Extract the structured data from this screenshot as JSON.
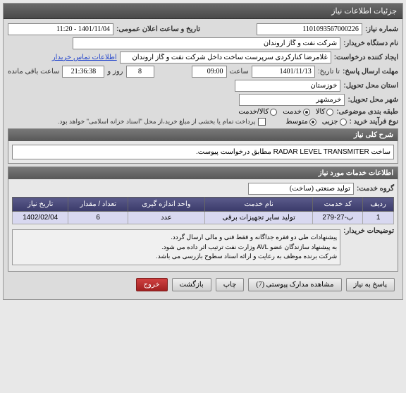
{
  "panel_title": "جزئیات اطلاعات نیاز",
  "labels": {
    "need_no": "شماره نیاز:",
    "announce_time": "تاریخ و ساعت اعلان عمومی:",
    "buyer": "نام دستگاه خریدار:",
    "requester": "ایجاد کننده درخواست:",
    "contact_link": "اطلاعات تماس خریدار",
    "deadline": "مهلت ارسال پاسخ:",
    "until": "تا تاریخ:",
    "hour": "ساعت",
    "day_and": "روز و",
    "remaining": "ساعت باقی مانده",
    "province": "استان محل تحویل:",
    "city": "شهر محل تحویل:",
    "category": "طبقه بندی موضوعی:",
    "kala": "کالا",
    "khadamat": "خدمت",
    "kala_khadamat": "کالا/خدمت",
    "buy_type": "نوع فرآیند خرید :",
    "jozi": "جزیی",
    "motavaset": "متوسط",
    "payment_note": "پرداخت تمام یا بخشی از مبلغ خرید،از محل \"اسناد خزانه اسلامی\" خواهد بود.",
    "desc_header": "شرح کلی نیاز",
    "services_header": "اطلاعات خدمات مورد نیاز",
    "service_group": "گروه خدمت:",
    "buyer_notes_label": "توضیحات خریدار:"
  },
  "values": {
    "need_no": "1101093567000226",
    "announce_time": "1401/11/04 - 11:20",
    "buyer": "شرکت نفت و گاز اروندان",
    "requester": "غلامرضا کنارکردی سرپرست ساخت داخل شرکت نفت و گاز اروندان",
    "deadline_date": "1401/11/13",
    "deadline_hour": "09:00",
    "days": "8",
    "countdown": "21:36:38",
    "province": "خوزستان",
    "city": "خرمشهر",
    "desc": "ساخت RADAR LEVEL TRANSMITER مطابق درخواست پیوست.",
    "service_group": "تولید صنعتی (ساخت)",
    "buyer_notes": "پیشنهادات طی دو فقره جداگانه و فقط فنی و مالی ارسال گردد.\nبه پیشنهاد سازندگان عضو AVL وزارت نفت ترتیب اثر داده می شود.\nشرکت برنده موظف به رعایت و ارائه اسناد سطوح بازرسی می باشد."
  },
  "table": {
    "headers": [
      "ردیف",
      "کد خدمت",
      "نام خدمت",
      "واحد اندازه گیری",
      "تعداد / مقدار",
      "تاریخ نیاز"
    ],
    "row": [
      "1",
      "ب-27-279",
      "تولید سایر تجهیزات برقی",
      "عدد",
      "6",
      "1402/02/04"
    ]
  },
  "buttons": {
    "reply": "پاسخ به نیاز",
    "attachments": "مشاهده مدارک پیوستی (7)",
    "print": "چاپ",
    "back": "بازگشت",
    "exit": "خروج"
  }
}
